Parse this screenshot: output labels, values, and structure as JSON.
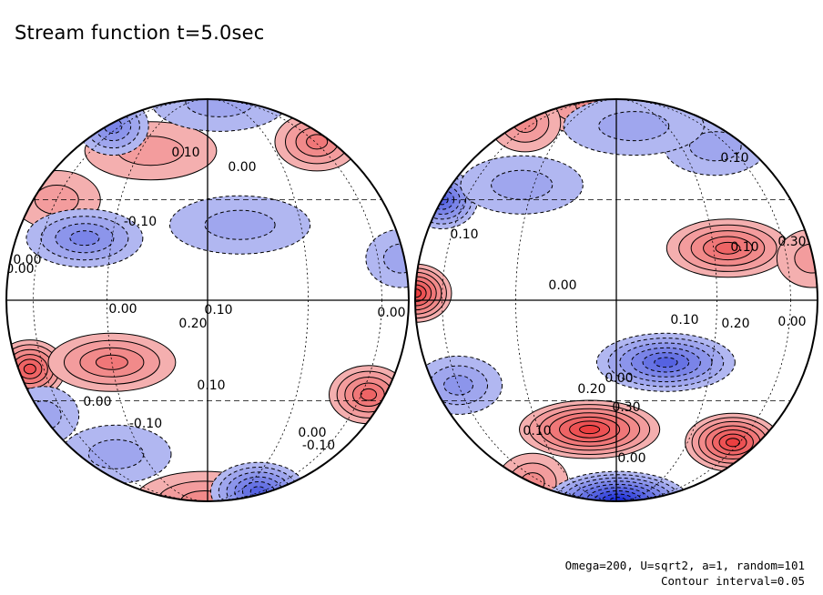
{
  "title": "Stream function t=5.0sec",
  "footnote": {
    "params": "Omega=200, U=sqrt2, a=1, random=101",
    "interval": "Contour interval=0.05"
  },
  "colors": {
    "positive": "#e8191b",
    "negative": "#1d2fd8",
    "positive_light": "#f6c2c2",
    "negative_light": "#c4c8f4",
    "line": "#000000"
  },
  "chart_data": {
    "type": "heatmap",
    "projection": "orthographic, two hemispheres",
    "field": "stream function",
    "contour_interval": 0.05,
    "hemispheres": [
      {
        "name": "left",
        "contour_labels": [
          "0.10",
          "0.00",
          "-0.10",
          "0.00",
          "0.00",
          "0.20",
          "0.10",
          "0.10",
          "0.00",
          "0.00",
          "-0.10",
          "0.00",
          "-0.10",
          "0.00"
        ],
        "blobs": [
          {
            "value": 0.3,
            "lat": -20,
            "lon": -70
          },
          {
            "value": 0.2,
            "lat": -18,
            "lon": -30
          },
          {
            "value": 0.25,
            "lat": -28,
            "lon": 65
          },
          {
            "value": 0.12,
            "lat": 30,
            "lon": -60
          },
          {
            "value": 0.18,
            "lat": 52,
            "lon": 62
          },
          {
            "value": 0.1,
            "lat": 48,
            "lon": -25
          },
          {
            "value": 0.15,
            "lat": -85,
            "lon": -10
          },
          {
            "value": -0.18,
            "lat": 18,
            "lon": -40
          },
          {
            "value": -0.1,
            "lat": 22,
            "lon": 10
          },
          {
            "value": -0.12,
            "lat": 12,
            "lon": 80
          },
          {
            "value": -0.22,
            "lat": 60,
            "lon": -70
          },
          {
            "value": -0.12,
            "lat": 80,
            "lon": 20
          },
          {
            "value": -0.3,
            "lat": -72,
            "lon": 55
          },
          {
            "value": -0.12,
            "lat": -50,
            "lon": -45
          },
          {
            "value": -0.08,
            "lat": -35,
            "lon": -95
          }
        ]
      },
      {
        "name": "right",
        "contour_labels": [
          "0.10",
          "0.10",
          "0.00",
          "0.10",
          "0.00",
          "0.10",
          "0.20",
          "0.00",
          "0.30",
          "0.20",
          "0.30",
          "0.10",
          "0.00"
        ],
        "blobs": [
          {
            "value": 0.35,
            "lat": 2,
            "lon": -85
          },
          {
            "value": 0.25,
            "lat": 15,
            "lon": 35
          },
          {
            "value": 0.35,
            "lat": -40,
            "lon": -10
          },
          {
            "value": 0.35,
            "lat": -45,
            "lon": 55
          },
          {
            "value": 0.15,
            "lat": 75,
            "lon": -20
          },
          {
            "value": 0.15,
            "lat": 62,
            "lon": -75
          },
          {
            "value": 0.12,
            "lat": 12,
            "lon": 85
          },
          {
            "value": 0.15,
            "lat": -65,
            "lon": -80
          },
          {
            "value": -0.3,
            "lat": 30,
            "lon": -90
          },
          {
            "value": -0.28,
            "lat": -18,
            "lon": 15
          },
          {
            "value": -0.15,
            "lat": -25,
            "lon": -60
          },
          {
            "value": -0.12,
            "lat": 50,
            "lon": 50
          },
          {
            "value": -0.12,
            "lat": 35,
            "lon": -35
          },
          {
            "value": -0.45,
            "lat": -85,
            "lon": 5
          },
          {
            "value": -0.1,
            "lat": 80,
            "lon": 70
          },
          {
            "value": -0.08,
            "lat": 60,
            "lon": 10
          }
        ]
      }
    ]
  }
}
